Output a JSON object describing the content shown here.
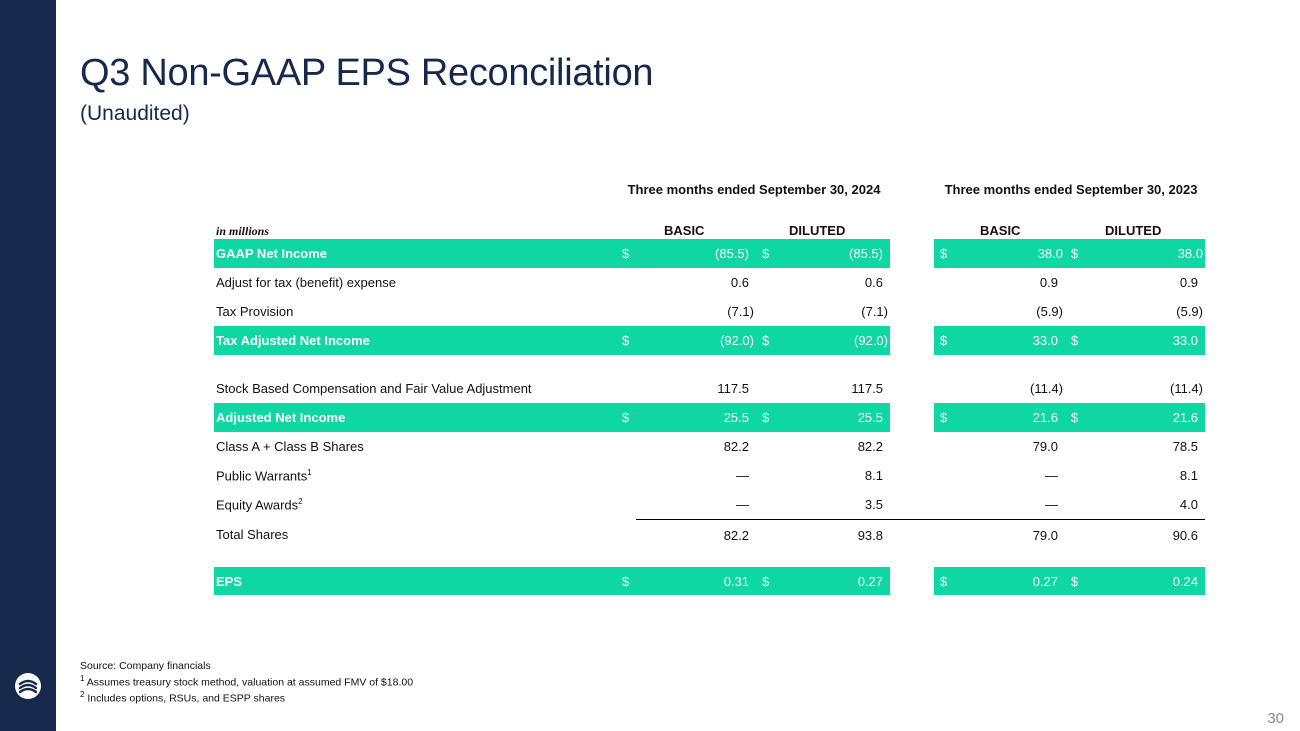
{
  "slide": {
    "title": "Q3 Non-GAAP EPS Reconciliation",
    "subtitle": "(Unaudited)",
    "page_number": "30",
    "accent_color": "#0ed7a4",
    "sidebar_color": "#16294d"
  },
  "table": {
    "units_label": "in millions",
    "periods": [
      "Three months ended September 30, 2024",
      "Three months ended September 30, 2023"
    ],
    "column_headers": [
      "BASIC",
      "DILUTED",
      "BASIC",
      "DILUTED"
    ],
    "currency_symbol": "$",
    "rows": [
      {
        "label": "GAAP Net Income",
        "values": [
          "(85.5)",
          "(85.5)",
          "38.0",
          "38.0"
        ]
      },
      {
        "label": "Adjust for tax (benefit) expense",
        "values": [
          "0.6",
          "0.6",
          "0.9",
          "0.9"
        ]
      },
      {
        "label": "Tax Provision",
        "values": [
          "(7.1)",
          "(7.1)",
          "(5.9)",
          "(5.9)"
        ]
      },
      {
        "label": "Tax Adjusted Net Income",
        "values": [
          "(92.0)",
          "(92.0)",
          "33.0",
          "33.0"
        ]
      },
      {
        "label": "Stock Based Compensation and Fair Value Adjustment",
        "values": [
          "117.5",
          "117.5",
          "(11.4)",
          "(11.4)"
        ]
      },
      {
        "label": "Adjusted Net Income",
        "values": [
          "25.5",
          "25.5",
          "21.6",
          "21.6"
        ]
      },
      {
        "label": "Class A + Class B Shares",
        "values": [
          "82.2",
          "82.2",
          "79.0",
          "78.5"
        ]
      },
      {
        "label": "Public Warrants",
        "footnote": "1",
        "values": [
          "—",
          "8.1",
          "—",
          "8.1"
        ]
      },
      {
        "label": "Equity Awards",
        "footnote": "2",
        "values": [
          "—",
          "3.5",
          "—",
          "4.0"
        ]
      },
      {
        "label": "Total Shares",
        "values": [
          "82.2",
          "93.8",
          "79.0",
          "90.6"
        ]
      },
      {
        "label": "EPS",
        "values": [
          "0.31",
          "0.27",
          "0.27",
          "0.24"
        ]
      }
    ]
  },
  "footnotes": {
    "source": "Source: Company financials",
    "note1_marker": "1",
    "note1": "Assumes treasury stock method, valuation at assumed FMV of $18.00",
    "note2_marker": "2",
    "note2": "Includes options, RSUs, and ESPP shares"
  }
}
